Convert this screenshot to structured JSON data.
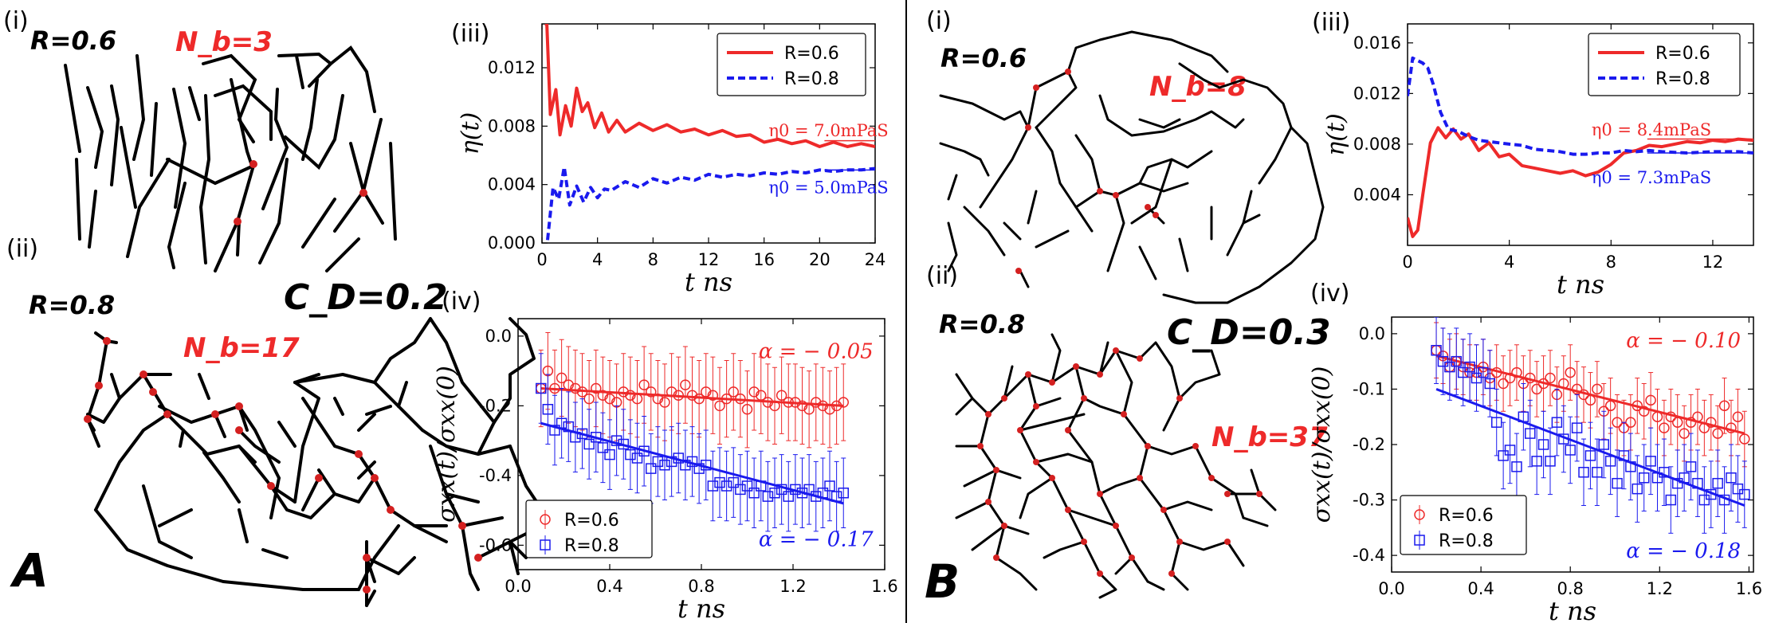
{
  "colors": {
    "red": "#ee2a2a",
    "blue": "#1a1aee",
    "black": "#000000"
  },
  "panels": [
    {
      "letter": "A",
      "cd_label": "C_D=0.2",
      "sub_i": "(i)",
      "sub_ii": "(ii)",
      "sub_iii": "(iii)",
      "sub_iv": "(iv)",
      "snap_i": {
        "r_label": "R=0.6",
        "nb_label": "N_b=3"
      },
      "snap_ii": {
        "r_label": "R=0.8",
        "nb_label": "N_b=17"
      }
    },
    {
      "letter": "B",
      "cd_label": "C_D=0.3",
      "sub_i": "(i)",
      "sub_ii": "(ii)",
      "sub_iii": "(iii)",
      "sub_iv": "(iv)",
      "snap_i": {
        "r_label": "R=0.6",
        "nb_label": "N_b=8"
      },
      "snap_ii": {
        "r_label": "R=0.8",
        "nb_label": "N_b=37"
      }
    }
  ],
  "chart_data": [
    {
      "id": "A-iii",
      "type": "line",
      "xlabel": "t ns",
      "ylabel": "η(t)",
      "xlim": [
        0,
        24
      ],
      "ylim": [
        0,
        0.015
      ],
      "xticks": [
        "0",
        "4",
        "8",
        "12",
        "16",
        "20",
        "24"
      ],
      "yticks": [
        "0.000",
        "0.004",
        "0.008",
        "0.012"
      ],
      "ytick_values": [
        0,
        0.004,
        0.008,
        0.012
      ],
      "xtick_values": [
        0,
        4,
        8,
        12,
        16,
        20,
        24
      ],
      "legend": [
        {
          "name": "R=0.6",
          "style": "solid",
          "color": "#ee2a2a"
        },
        {
          "name": "R=0.8",
          "style": "dashed",
          "color": "#1a1aee"
        }
      ],
      "annotations": [
        {
          "text": "η0 = 7.0mPaS",
          "color": "#ee2a2a",
          "x": 19.2,
          "y": 0.0073,
          "ref_y": 0.007
        },
        {
          "text": "η0 = 5.0mPaS",
          "color": "#1a1aee",
          "x": 19.2,
          "y": 0.0034,
          "ref_y": 0.005
        }
      ],
      "series": [
        {
          "name": "R=0.6",
          "color": "#ee2a2a",
          "style": "solid",
          "x": [
            0.2,
            0.35,
            0.6,
            1,
            1.3,
            1.7,
            2.1,
            2.5,
            2.9,
            3.3,
            3.8,
            4.3,
            4.8,
            5.4,
            6,
            7,
            8,
            9,
            10,
            11,
            12,
            13,
            14,
            15,
            16,
            17,
            18,
            19,
            20,
            21,
            22,
            23,
            24
          ],
          "y": [
            0.015,
            0.015,
            0.0088,
            0.0105,
            0.0074,
            0.0094,
            0.008,
            0.0106,
            0.009,
            0.0096,
            0.0079,
            0.0089,
            0.0076,
            0.0084,
            0.0076,
            0.0082,
            0.0077,
            0.0081,
            0.0076,
            0.0078,
            0.0074,
            0.0077,
            0.0073,
            0.0074,
            0.0069,
            0.0071,
            0.0068,
            0.007,
            0.0066,
            0.0069,
            0.0066,
            0.0068,
            0.0066
          ]
        },
        {
          "name": "R=0.8",
          "color": "#1a1aee",
          "style": "dashed",
          "x": [
            0.4,
            0.8,
            1.2,
            1.6,
            2,
            2.5,
            3,
            3.5,
            4,
            4.5,
            5,
            6,
            7,
            8,
            9,
            10,
            11,
            12,
            13,
            14,
            15,
            16,
            17,
            18,
            19,
            20,
            21,
            22,
            23,
            24
          ],
          "y": [
            0.0002,
            0.0038,
            0.003,
            0.0052,
            0.0026,
            0.0039,
            0.0028,
            0.0038,
            0.0031,
            0.0037,
            0.0036,
            0.0042,
            0.0038,
            0.0044,
            0.0041,
            0.0045,
            0.0043,
            0.0047,
            0.0045,
            0.0047,
            0.0046,
            0.0048,
            0.0047,
            0.0049,
            0.0048,
            0.005,
            0.0049,
            0.005,
            0.005,
            0.0051
          ]
        }
      ]
    },
    {
      "id": "A-iv",
      "type": "scatter",
      "xlabel": "t ns",
      "ylabel": "σxx(t)/σxx(0)",
      "xlim": [
        0,
        1.6
      ],
      "ylim": [
        -0.67,
        0.05
      ],
      "xticks": [
        "0.0",
        "0.4",
        "0.8",
        "1.2",
        "1.6"
      ],
      "xtick_values": [
        0,
        0.4,
        0.8,
        1.2,
        1.6
      ],
      "yticks": [
        "0.0",
        "-0.2",
        "-0.4",
        "-0.6"
      ],
      "ytick_values": [
        0,
        -0.2,
        -0.4,
        -0.6
      ],
      "legend": [
        {
          "name": "R=0.6",
          "marker": "circle",
          "color": "#ee2a2a"
        },
        {
          "name": "R=0.8",
          "marker": "square",
          "color": "#1a1aee"
        }
      ],
      "annotations": [
        {
          "text": "α = − 0.05",
          "color": "#ee2a2a",
          "x": 1.05,
          "y": -0.04
        },
        {
          "text": "α = − 0.17",
          "color": "#1a1aee",
          "x": 1.05,
          "y": -0.58
        }
      ],
      "series": [
        {
          "name": "R=0.6",
          "color": "#ee2a2a",
          "marker": "circle",
          "err": 0.11,
          "x": [
            0.1,
            0.13,
            0.16,
            0.19,
            0.22,
            0.25,
            0.28,
            0.31,
            0.34,
            0.37,
            0.4,
            0.43,
            0.46,
            0.49,
            0.52,
            0.55,
            0.58,
            0.61,
            0.64,
            0.67,
            0.7,
            0.73,
            0.76,
            0.79,
            0.82,
            0.85,
            0.88,
            0.91,
            0.94,
            0.97,
            1.0,
            1.03,
            1.06,
            1.09,
            1.12,
            1.15,
            1.18,
            1.21,
            1.24,
            1.27,
            1.3,
            1.33,
            1.36,
            1.39,
            1.42
          ],
          "y": [
            -0.15,
            -0.1,
            -0.15,
            -0.12,
            -0.14,
            -0.15,
            -0.16,
            -0.18,
            -0.15,
            -0.17,
            -0.18,
            -0.19,
            -0.16,
            -0.17,
            -0.18,
            -0.14,
            -0.16,
            -0.18,
            -0.19,
            -0.16,
            -0.17,
            -0.14,
            -0.17,
            -0.18,
            -0.16,
            -0.17,
            -0.2,
            -0.18,
            -0.16,
            -0.18,
            -0.21,
            -0.16,
            -0.17,
            -0.19,
            -0.2,
            -0.17,
            -0.19,
            -0.19,
            -0.2,
            -0.21,
            -0.19,
            -0.2,
            -0.21,
            -0.2,
            -0.19
          ],
          "fit": [
            [
              0.1,
              -0.15
            ],
            [
              1.42,
              -0.2
            ]
          ]
        },
        {
          "name": "R=0.8",
          "color": "#1a1aee",
          "marker": "square",
          "err": 0.1,
          "x": [
            0.1,
            0.13,
            0.16,
            0.19,
            0.22,
            0.25,
            0.28,
            0.31,
            0.34,
            0.37,
            0.4,
            0.43,
            0.46,
            0.49,
            0.52,
            0.55,
            0.58,
            0.61,
            0.64,
            0.67,
            0.7,
            0.73,
            0.76,
            0.79,
            0.82,
            0.85,
            0.88,
            0.91,
            0.94,
            0.97,
            1.0,
            1.03,
            1.06,
            1.09,
            1.12,
            1.15,
            1.18,
            1.21,
            1.24,
            1.27,
            1.3,
            1.33,
            1.36,
            1.39,
            1.42
          ],
          "y": [
            -0.15,
            -0.21,
            -0.27,
            -0.25,
            -0.26,
            -0.29,
            -0.28,
            -0.31,
            -0.29,
            -0.32,
            -0.34,
            -0.3,
            -0.31,
            -0.34,
            -0.35,
            -0.33,
            -0.38,
            -0.36,
            -0.37,
            -0.36,
            -0.35,
            -0.37,
            -0.36,
            -0.38,
            -0.37,
            -0.43,
            -0.42,
            -0.43,
            -0.42,
            -0.44,
            -0.43,
            -0.45,
            -0.43,
            -0.46,
            -0.45,
            -0.44,
            -0.46,
            -0.44,
            -0.45,
            -0.44,
            -0.46,
            -0.45,
            -0.43,
            -0.46,
            -0.45
          ],
          "fit": [
            [
              0.1,
              -0.25
            ],
            [
              1.42,
              -0.48
            ]
          ]
        }
      ]
    },
    {
      "id": "B-iii",
      "type": "line",
      "xlabel": "t ns",
      "ylabel": "η(t)",
      "xlim": [
        0,
        13.6
      ],
      "ylim": [
        0,
        0.0175
      ],
      "xticks": [
        "0",
        "4",
        "8",
        "12"
      ],
      "xtick_values": [
        0,
        4,
        8,
        12
      ],
      "yticks": [
        "0.004",
        "0.008",
        "0.012",
        "0.016"
      ],
      "ytick_values": [
        0.004,
        0.008,
        0.012,
        0.016
      ],
      "legend": [
        {
          "name": "R=0.6",
          "style": "solid",
          "color": "#ee2a2a"
        },
        {
          "name": "R=0.8",
          "style": "dashed",
          "color": "#1a1aee"
        }
      ],
      "annotations": [
        {
          "text": "η0 = 8.4mPaS",
          "color": "#ee2a2a",
          "x": 8.8,
          "y": 0.0087,
          "ref_y": 0.0084
        },
        {
          "text": "η0 = 7.3mPaS",
          "color": "#1a1aee",
          "x": 8.8,
          "y": 0.0049,
          "ref_y": 0.0073
        }
      ],
      "series": [
        {
          "name": "R=0.6",
          "color": "#ee2a2a",
          "style": "solid",
          "x": [
            0,
            0.2,
            0.4,
            0.6,
            0.9,
            1.2,
            1.5,
            1.8,
            2.1,
            2.4,
            2.8,
            3.2,
            3.6,
            4,
            4.5,
            5,
            5.5,
            6,
            6.5,
            7,
            7.5,
            8,
            8.5,
            9,
            9.5,
            10,
            10.5,
            11,
            11.5,
            12,
            12.5,
            13,
            13.6
          ],
          "y": [
            0.0022,
            0.0007,
            0.0012,
            0.004,
            0.0081,
            0.0093,
            0.0085,
            0.0092,
            0.0084,
            0.0088,
            0.0075,
            0.0081,
            0.007,
            0.0072,
            0.0063,
            0.0061,
            0.0059,
            0.0057,
            0.0059,
            0.0055,
            0.0058,
            0.0064,
            0.0073,
            0.0075,
            0.0079,
            0.0078,
            0.008,
            0.0082,
            0.0081,
            0.0083,
            0.0082,
            0.0084,
            0.0083
          ]
        },
        {
          "name": "R=0.8",
          "color": "#1a1aee",
          "style": "dashed",
          "x": [
            0,
            0.2,
            0.4,
            0.6,
            0.8,
            1,
            1.3,
            1.6,
            2,
            2.4,
            2.8,
            3.2,
            3.6,
            4,
            4.5,
            5,
            5.5,
            6,
            6.5,
            7,
            7.5,
            8,
            8.5,
            9,
            9.5,
            10,
            11,
            12,
            13,
            13.6
          ],
          "y": [
            0.0118,
            0.0148,
            0.0146,
            0.0144,
            0.014,
            0.0128,
            0.0105,
            0.0092,
            0.009,
            0.0086,
            0.0083,
            0.0082,
            0.0081,
            0.008,
            0.0079,
            0.0076,
            0.0075,
            0.0074,
            0.0072,
            0.0072,
            0.0073,
            0.0073,
            0.0075,
            0.0074,
            0.0075,
            0.0074,
            0.0073,
            0.0074,
            0.0074,
            0.0073
          ]
        }
      ]
    },
    {
      "id": "B-iv",
      "type": "scatter",
      "xlabel": "t ns",
      "ylabel": "σxx(t)/σxx(0)",
      "xlim": [
        0,
        1.62
      ],
      "ylim": [
        -0.43,
        0.03
      ],
      "xticks": [
        "0.0",
        "0.4",
        "0.8",
        "1.2",
        "1.6"
      ],
      "xtick_values": [
        0,
        0.4,
        0.8,
        1.2,
        1.6
      ],
      "yticks": [
        "0.0",
        "-0.1",
        "-0.2",
        "-0.3",
        "-0.4"
      ],
      "ytick_values": [
        0,
        -0.1,
        -0.2,
        -0.3,
        -0.4
      ],
      "legend": [
        {
          "name": "R=0.6",
          "marker": "circle",
          "color": "#ee2a2a"
        },
        {
          "name": "R=0.8",
          "marker": "square",
          "color": "#1a1aee"
        }
      ],
      "annotations": [
        {
          "text": "α = − 0.10",
          "color": "#ee2a2a",
          "x": 1.05,
          "y": -0.01
        },
        {
          "text": "α = − 0.18",
          "color": "#1a1aee",
          "x": 1.05,
          "y": -0.39
        }
      ],
      "series": [
        {
          "name": "R=0.6",
          "color": "#ee2a2a",
          "marker": "circle",
          "err": 0.05,
          "x": [
            0.2,
            0.23,
            0.26,
            0.29,
            0.32,
            0.35,
            0.38,
            0.41,
            0.44,
            0.47,
            0.5,
            0.53,
            0.56,
            0.59,
            0.62,
            0.65,
            0.68,
            0.71,
            0.74,
            0.77,
            0.8,
            0.83,
            0.86,
            0.89,
            0.92,
            0.95,
            0.98,
            1.01,
            1.04,
            1.07,
            1.1,
            1.13,
            1.16,
            1.19,
            1.22,
            1.25,
            1.28,
            1.31,
            1.34,
            1.37,
            1.4,
            1.43,
            1.46,
            1.49,
            1.52,
            1.55,
            1.58
          ],
          "y": [
            -0.03,
            -0.04,
            -0.06,
            -0.05,
            -0.06,
            -0.07,
            -0.07,
            -0.06,
            -0.08,
            -0.07,
            -0.09,
            -0.08,
            -0.07,
            -0.09,
            -0.08,
            -0.1,
            -0.09,
            -0.08,
            -0.11,
            -0.09,
            -0.07,
            -0.1,
            -0.11,
            -0.12,
            -0.1,
            -0.14,
            -0.13,
            -0.16,
            -0.17,
            -0.16,
            -0.13,
            -0.14,
            -0.12,
            -0.15,
            -0.17,
            -0.15,
            -0.16,
            -0.18,
            -0.16,
            -0.15,
            -0.17,
            -0.16,
            -0.18,
            -0.13,
            -0.17,
            -0.15,
            -0.19
          ],
          "fit": [
            [
              0.2,
              -0.04
            ],
            [
              1.58,
              -0.18
            ]
          ]
        },
        {
          "name": "R=0.8",
          "color": "#1a1aee",
          "marker": "square",
          "err": 0.06,
          "x": [
            0.2,
            0.23,
            0.26,
            0.29,
            0.32,
            0.35,
            0.38,
            0.41,
            0.44,
            0.47,
            0.5,
            0.53,
            0.56,
            0.59,
            0.62,
            0.65,
            0.68,
            0.71,
            0.74,
            0.77,
            0.8,
            0.83,
            0.86,
            0.89,
            0.92,
            0.95,
            0.98,
            1.01,
            1.04,
            1.07,
            1.1,
            1.13,
            1.16,
            1.19,
            1.22,
            1.25,
            1.28,
            1.31,
            1.34,
            1.37,
            1.4,
            1.43,
            1.46,
            1.49,
            1.52,
            1.55,
            1.58
          ],
          "y": [
            -0.03,
            -0.05,
            -0.06,
            -0.05,
            -0.07,
            -0.06,
            -0.08,
            -0.07,
            -0.09,
            -0.16,
            -0.22,
            -0.21,
            -0.24,
            -0.15,
            -0.18,
            -0.23,
            -0.2,
            -0.23,
            -0.16,
            -0.19,
            -0.21,
            -0.17,
            -0.25,
            -0.22,
            -0.25,
            -0.2,
            -0.23,
            -0.27,
            -0.22,
            -0.24,
            -0.28,
            -0.26,
            -0.23,
            -0.26,
            -0.25,
            -0.3,
            -0.27,
            -0.26,
            -0.24,
            -0.27,
            -0.3,
            -0.29,
            -0.27,
            -0.3,
            -0.26,
            -0.28,
            -0.29
          ],
          "fit": [
            [
              0.2,
              -0.1
            ],
            [
              1.58,
              -0.31
            ]
          ]
        }
      ]
    }
  ]
}
